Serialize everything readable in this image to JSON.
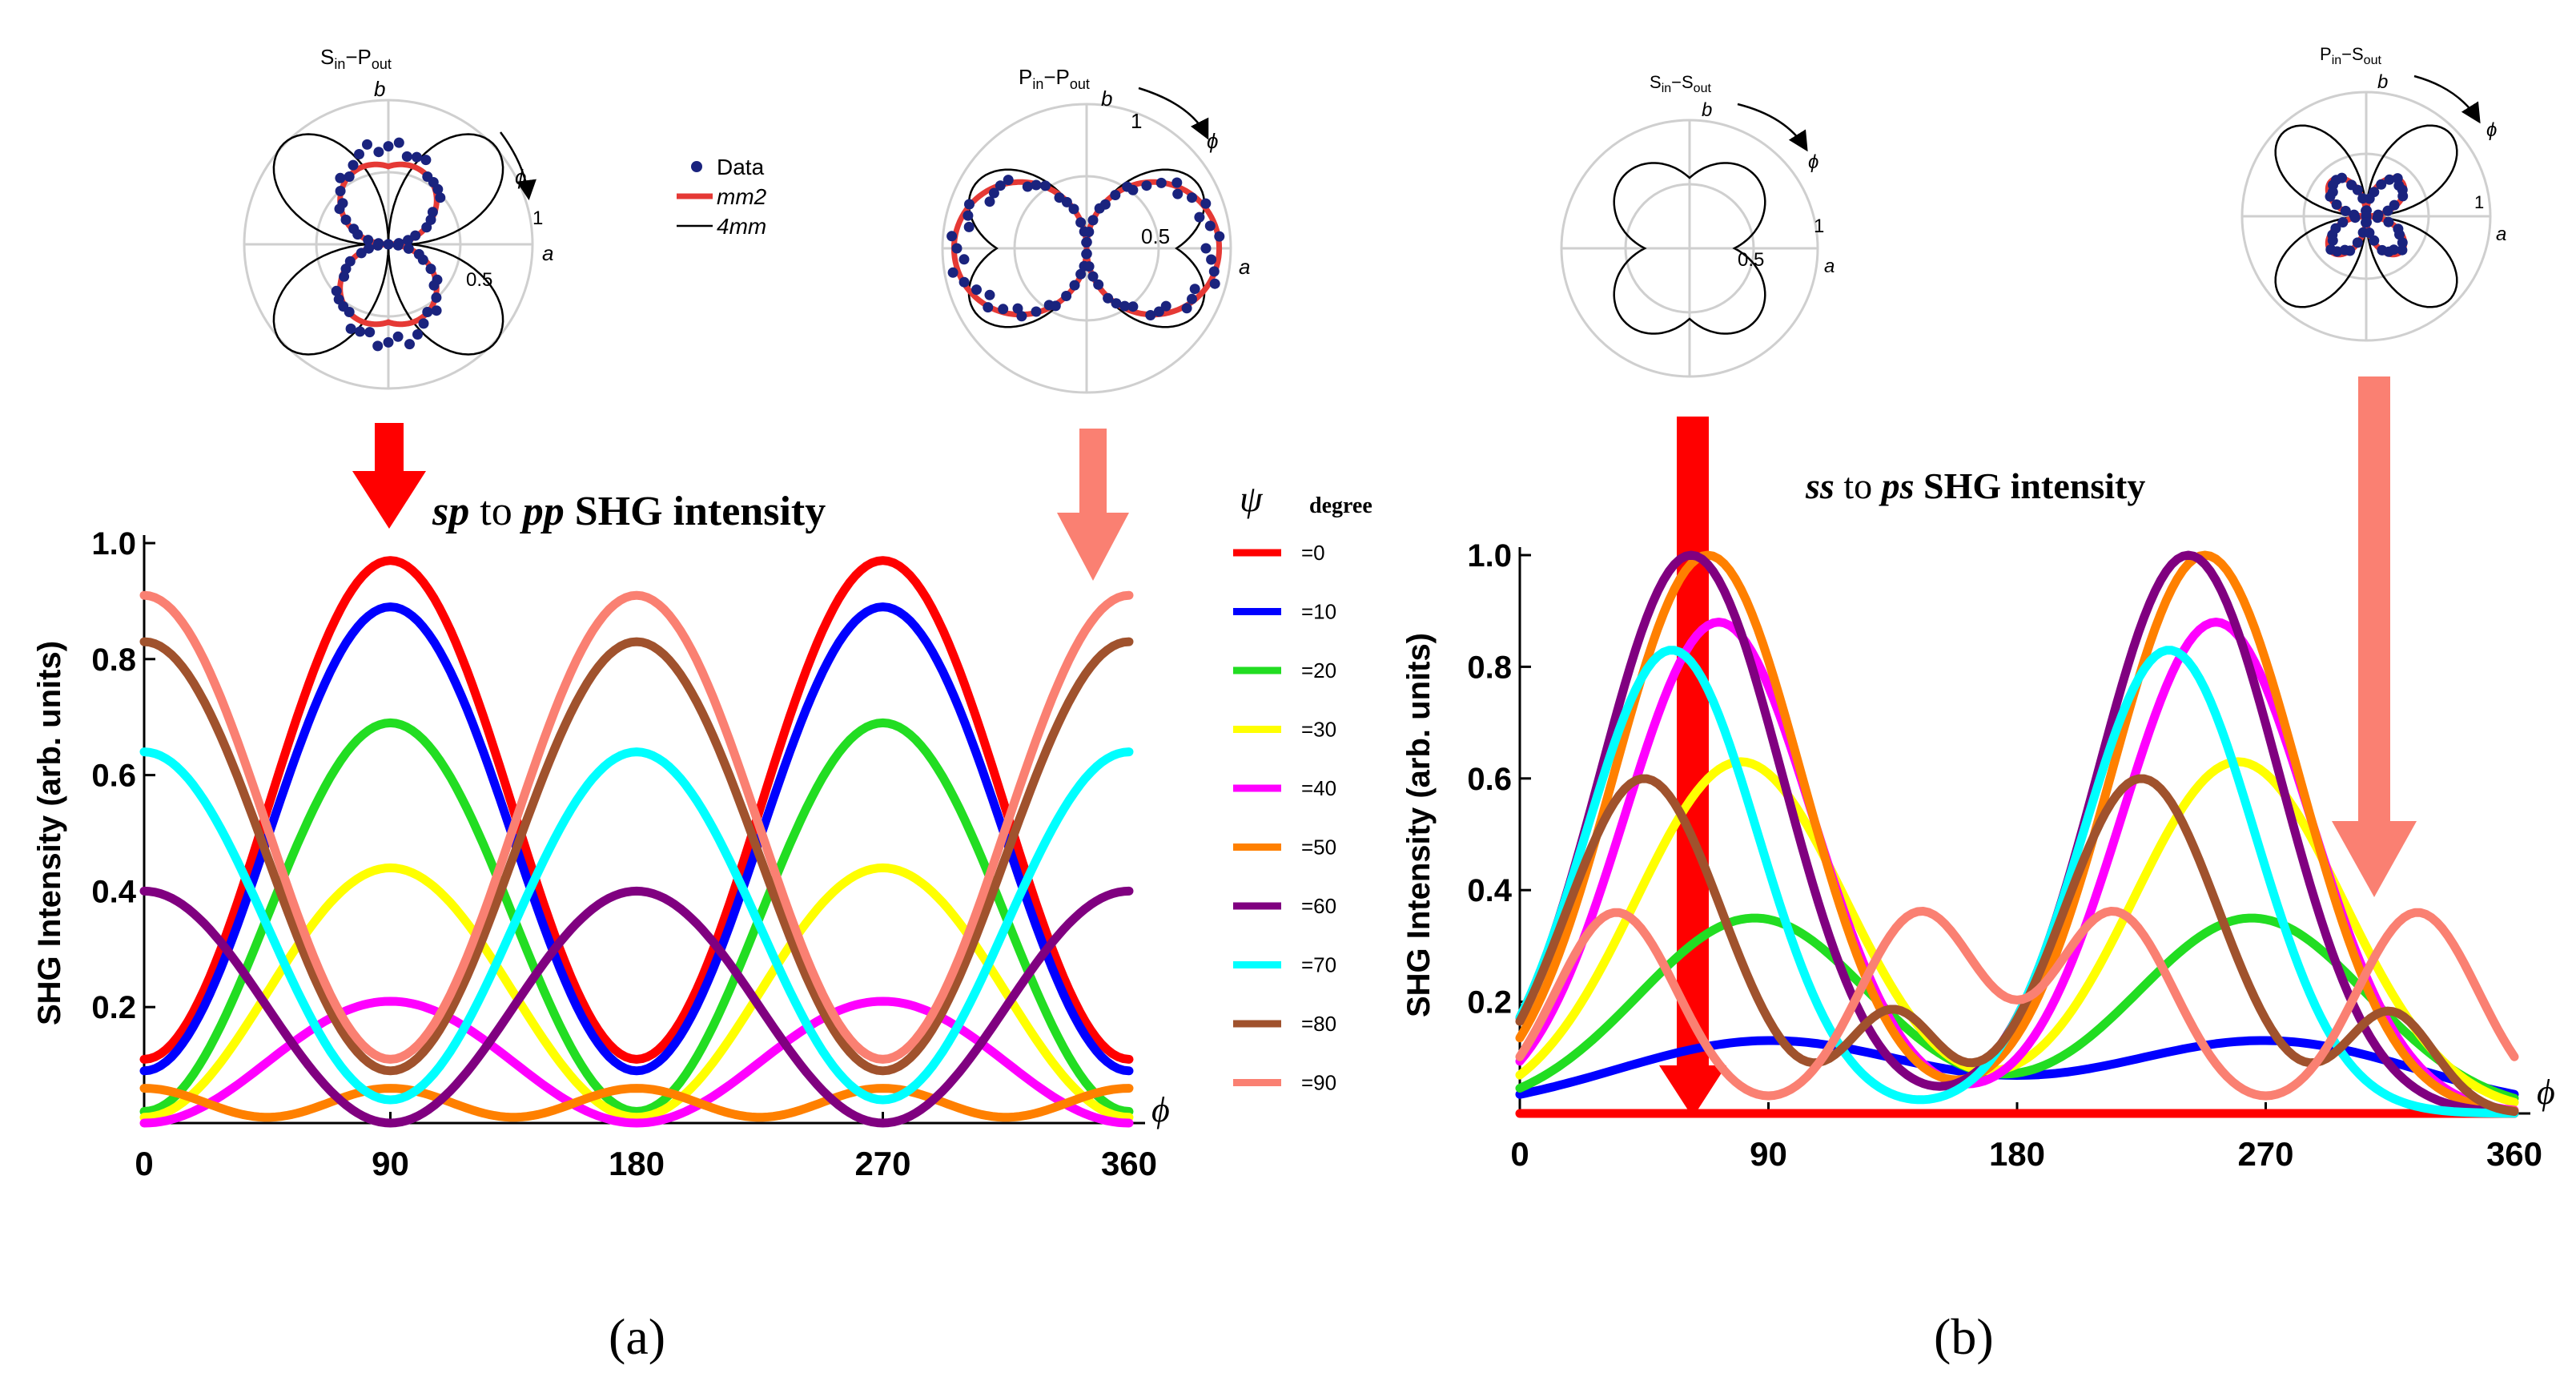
{
  "panels": {
    "a": {
      "label": "(a)",
      "title_parts": [
        "sp",
        " to ",
        "pp",
        " SHG intensity"
      ],
      "polar": [
        {
          "name": "sin-pout",
          "title_main": "S",
          "title_sub1": "in",
          "title_dash": "−P",
          "title_sub2": "out",
          "axis_b": "b",
          "axis_a": "a",
          "phi": "ϕ",
          "tick_half": "0.5",
          "tick_one": "1"
        },
        {
          "name": "pin-pout",
          "title_main": "P",
          "title_sub1": "in",
          "title_dash": "−P",
          "title_sub2": "out",
          "axis_b": "b",
          "axis_a": "a",
          "phi": "ϕ",
          "tick_half": "0.5",
          "tick_one": "1"
        }
      ],
      "polar_legend": [
        {
          "label": "Data",
          "style": "dots",
          "color": "#1a237e"
        },
        {
          "label": "mm2",
          "style": "thick",
          "color": "#e53935"
        },
        {
          "label": "4mm",
          "style": "thin",
          "color": "#000000"
        }
      ]
    },
    "b": {
      "label": "(b)",
      "title_parts": [
        "ss",
        " to ",
        "ps",
        " SHG intensity"
      ],
      "polar": [
        {
          "name": "sin-sout",
          "title_main": "S",
          "title_sub1": "in",
          "title_dash": "−S",
          "title_sub2": "out",
          "axis_b": "b",
          "axis_a": "a",
          "phi": "ϕ",
          "tick_half": "0.5",
          "tick_one": "1"
        },
        {
          "name": "pin-sout",
          "title_main": "P",
          "title_sub1": "in",
          "title_dash": "−S",
          "title_sub2": "out",
          "axis_b": "b",
          "axis_a": "a",
          "phi": "ϕ",
          "tick_half": "0.5",
          "tick_one": "1"
        }
      ]
    }
  },
  "psi_legend": {
    "symbol": "ψ",
    "unit": "degree",
    "entries": [
      {
        "label": "=0",
        "color": "#ff0000"
      },
      {
        "label": "=10",
        "color": "#0000ff"
      },
      {
        "label": "=20",
        "color": "#22dd22"
      },
      {
        "label": "=30",
        "color": "#ffff00"
      },
      {
        "label": "=40",
        "color": "#ff00ff"
      },
      {
        "label": "=50",
        "color": "#ff8000"
      },
      {
        "label": "=60",
        "color": "#800080"
      },
      {
        "label": "=70",
        "color": "#00ffff"
      },
      {
        "label": "=80",
        "color": "#a0522d"
      },
      {
        "label": "=90",
        "color": "#fa8072"
      }
    ]
  },
  "chart_data": [
    {
      "type": "line",
      "title": "sp to pp SHG intensity",
      "xlabel": "ϕ",
      "ylabel": "SHG Intensity  (arb. units)",
      "xlim": [
        0,
        360
      ],
      "ylim": [
        0,
        1.0
      ],
      "xticks": [
        0,
        90,
        180,
        270,
        360
      ],
      "yticks": [
        0.2,
        0.4,
        0.6,
        0.8,
        1.0
      ],
      "xtick_labels": [
        "0",
        "90",
        "180",
        "270",
        "360"
      ],
      "ytick_labels": [
        "0.2",
        "0.4",
        "0.6",
        "0.8",
        "1.0"
      ],
      "series": [
        {
          "name": "ψ=0",
          "color": "#ff0000",
          "mean": 0.54,
          "amp": 0.43,
          "freq": 2,
          "shift": 90
        },
        {
          "name": "ψ=10",
          "color": "#0000ff",
          "mean": 0.49,
          "amp": 0.4,
          "freq": 2,
          "shift": 90
        },
        {
          "name": "ψ=20",
          "color": "#22dd22",
          "mean": 0.355,
          "amp": 0.335,
          "freq": 2,
          "shift": 90
        },
        {
          "name": "ψ=30",
          "color": "#ffff00",
          "mean": 0.225,
          "amp": 0.215,
          "freq": 2,
          "shift": 90
        },
        {
          "name": "ψ=40",
          "color": "#ff00ff",
          "mean": 0.105,
          "amp": 0.105,
          "freq": 2,
          "shift": 90
        },
        {
          "name": "ψ=50",
          "color": "#ff8000",
          "mean": 0.035,
          "amp": 0.025,
          "freq": 4,
          "shift": 0
        },
        {
          "name": "ψ=60",
          "color": "#800080",
          "mean": 0.2,
          "amp": 0.2,
          "freq": 2,
          "shift": 0
        },
        {
          "name": "ψ=70",
          "color": "#00ffff",
          "mean": 0.34,
          "amp": 0.3,
          "freq": 2,
          "shift": 0
        },
        {
          "name": "ψ=80",
          "color": "#a0522d",
          "mean": 0.46,
          "amp": 0.37,
          "freq": 2,
          "shift": 0
        },
        {
          "name": "ψ=90",
          "color": "#fa8072",
          "mean": 0.51,
          "amp": 0.4,
          "freq": 2,
          "shift": 0
        }
      ]
    },
    {
      "type": "line",
      "title": "ss to ps SHG intensity",
      "xlabel": "ϕ",
      "ylabel": "SHG Intensity  (arb. units)",
      "xlim": [
        0,
        360
      ],
      "ylim": [
        0,
        1.0
      ],
      "xticks": [
        0,
        90,
        180,
        270,
        360
      ],
      "yticks": [
        0.2,
        0.4,
        0.6,
        0.8,
        1.0
      ],
      "xtick_labels": [
        "0",
        "90",
        "180",
        "270",
        "360"
      ],
      "ytick_labels": [
        "0.2",
        "0.4",
        "0.6",
        "0.8",
        "1.0"
      ],
      "series": [
        {
          "name": "ψ=0",
          "color": "#ff0000",
          "peak": 0.0,
          "center": 75,
          "center2": 255,
          "width": 45
        },
        {
          "name": "ψ=10",
          "color": "#0000ff",
          "peak": 0.13,
          "center": 90,
          "center2": 270,
          "width": 55
        },
        {
          "name": "ψ=20",
          "color": "#22dd22",
          "peak": 0.35,
          "center": 85,
          "center2": 265,
          "width": 42
        },
        {
          "name": "ψ=30",
          "color": "#ffff00",
          "peak": 0.63,
          "center": 80,
          "center2": 260,
          "width": 38
        },
        {
          "name": "ψ=40",
          "color": "#ff00ff",
          "peak": 0.88,
          "center": 72,
          "center2": 252,
          "width": 34
        },
        {
          "name": "ψ=50",
          "color": "#ff8000",
          "peak": 1.0,
          "center": 68,
          "center2": 248,
          "width": 34
        },
        {
          "name": "ψ=60",
          "color": "#800080",
          "peak": 1.0,
          "center": 62,
          "center2": 242,
          "width": 33
        },
        {
          "name": "ψ=70",
          "color": "#00ffff",
          "peak": 0.83,
          "center": 55,
          "center2": 235,
          "width": 31
        },
        {
          "name": "ψ=80",
          "color": "#a0522d",
          "peak": 0.6,
          "center": 45,
          "center2": 225,
          "width": 28,
          "bump": 0.18,
          "bump_center": 135,
          "bump_center2": 315,
          "bump_width": 16
        },
        {
          "name": "ψ=90",
          "color": "#fa8072",
          "peak": 0.36,
          "center": 35,
          "center2": 215,
          "width": 22,
          "bump": 0.36,
          "bump_center": 145,
          "bump_center2": 325,
          "bump_width": 22
        }
      ]
    }
  ]
}
